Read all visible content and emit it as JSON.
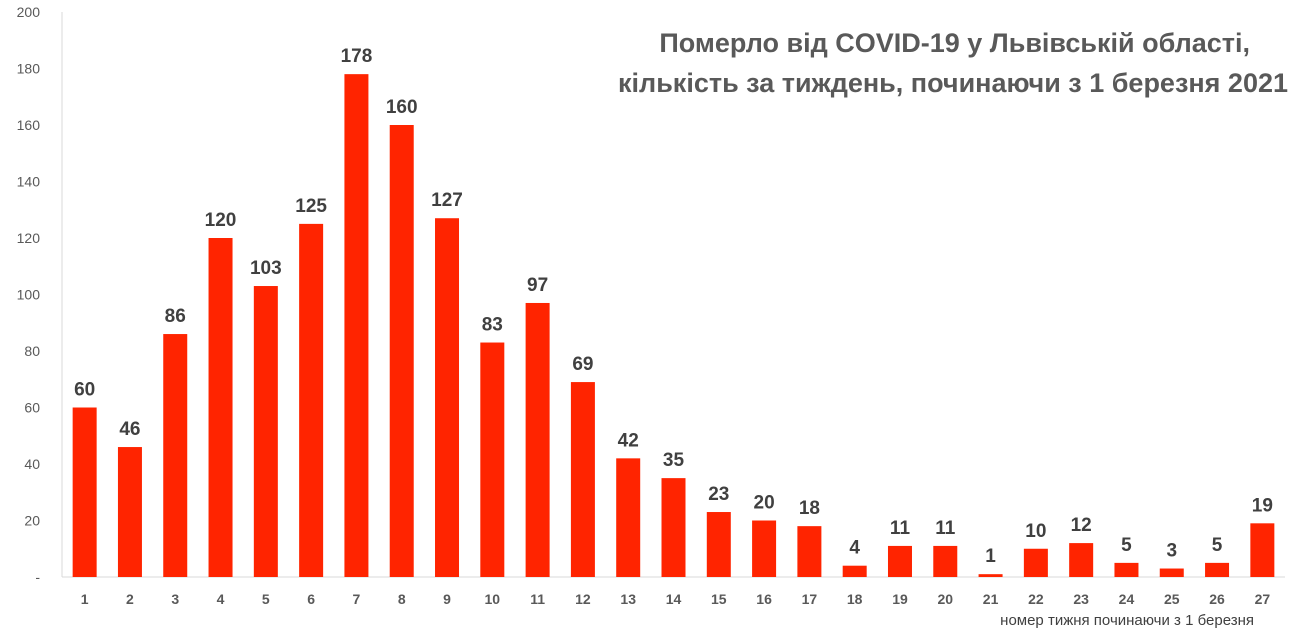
{
  "chart_data": {
    "type": "bar",
    "title_lines": [
      "Померло від COVID-19 у Львівській області,",
      "кількість за тиждень, починаючи з 1 березня 2021"
    ],
    "xlabel": "номер тижня починаючи з 1 березня",
    "ylabel": "",
    "ylim": [
      0,
      200
    ],
    "yticks": [
      "-",
      "20",
      "40",
      "60",
      "80",
      "100",
      "120",
      "140",
      "160",
      "180",
      "200"
    ],
    "categories": [
      "1",
      "2",
      "3",
      "4",
      "5",
      "6",
      "7",
      "8",
      "9",
      "10",
      "11",
      "12",
      "13",
      "14",
      "15",
      "16",
      "17",
      "18",
      "19",
      "20",
      "21",
      "22",
      "23",
      "24",
      "25",
      "26",
      "27"
    ],
    "values": [
      60,
      46,
      86,
      120,
      103,
      125,
      178,
      160,
      127,
      83,
      97,
      69,
      42,
      35,
      23,
      20,
      18,
      4,
      11,
      11,
      1,
      10,
      12,
      5,
      3,
      5,
      19
    ],
    "data_labels": true,
    "grid": false,
    "legend": "none",
    "bar_color": "#FF2400"
  }
}
